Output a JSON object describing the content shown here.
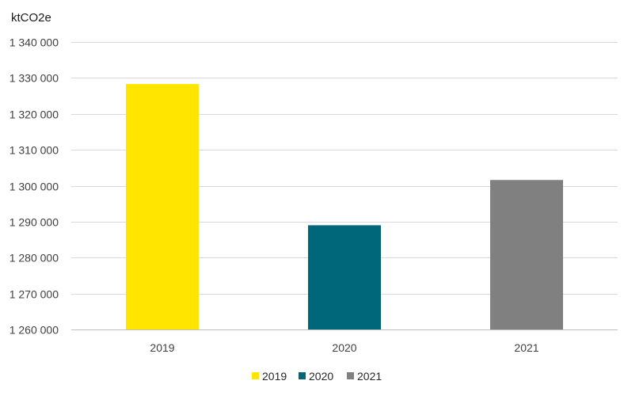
{
  "chart_data": {
    "type": "bar",
    "title": "",
    "unit_label": "ktCO2e",
    "xlabel": "",
    "ylabel": "ktCO2e",
    "categories": [
      "2019",
      "2020",
      "2021"
    ],
    "values": [
      1328300,
      1289000,
      1301600
    ],
    "colors": [
      "#FFE500",
      "#00677A",
      "#808080"
    ],
    "ylim": [
      1260000,
      1340000
    ],
    "y_ticks": [
      1260000,
      1270000,
      1280000,
      1290000,
      1300000,
      1310000,
      1320000,
      1330000,
      1340000
    ],
    "y_tick_labels": [
      "1 260 000",
      "1 270 000",
      "1 280 000",
      "1 290 000",
      "1 300 000",
      "1 310 000",
      "1 320 000",
      "1 330 000",
      "1 340 000"
    ],
    "grid": true,
    "legend": {
      "position": "bottom",
      "entries": [
        "2019",
        "2020",
        "2021"
      ]
    }
  }
}
